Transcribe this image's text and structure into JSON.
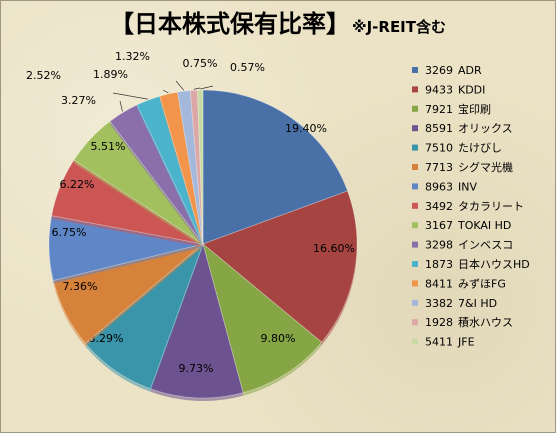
{
  "chart_data": {
    "type": "pie",
    "title": "【日本株式保有比率】",
    "subtitle": "※J-REIT含む",
    "slices": [
      {
        "code": "3269",
        "name": "ADR",
        "value": 19.4,
        "label": "19.40%",
        "color": "#4a70a8"
      },
      {
        "code": "9433",
        "name": "KDDI",
        "value": 16.6,
        "label": "16.60%",
        "color": "#a64442"
      },
      {
        "code": "7921",
        "name": "宝印刷",
        "value": 9.8,
        "label": "9.80%",
        "color": "#86a545"
      },
      {
        "code": "8591",
        "name": "オリックス",
        "value": 9.73,
        "label": "9.73%",
        "color": "#6d5290"
      },
      {
        "code": "7510",
        "name": "たけびし",
        "value": 8.29,
        "label": "8.29%",
        "color": "#3a94aa"
      },
      {
        "code": "7713",
        "name": "シグマ光機",
        "value": 7.36,
        "label": "7.36%",
        "color": "#d7823a"
      },
      {
        "code": "8963",
        "name": "INV",
        "value": 6.75,
        "label": "6.75%",
        "color": "#5f87c8"
      },
      {
        "code": "3492",
        "name": "タカラリート",
        "value": 6.22,
        "label": "6.22%",
        "color": "#cc5654"
      },
      {
        "code": "3167",
        "name": "TOKAI HD",
        "value": 5.51,
        "label": "5.51%",
        "color": "#a2c05e"
      },
      {
        "code": "3298",
        "name": "インベスコ",
        "value": 3.27,
        "label": "3.27%",
        "color": "#8a6fab"
      },
      {
        "code": "1873",
        "name": "日本ハウスHD",
        "value": 2.52,
        "label": "2.52%",
        "color": "#4bb3cb"
      },
      {
        "code": "8411",
        "name": "みずほFG",
        "value": 1.89,
        "label": "1.89%",
        "color": "#f2954a"
      },
      {
        "code": "3382",
        "name": "7&I HD",
        "value": 1.32,
        "label": "1.32%",
        "color": "#a4b8dc"
      },
      {
        "code": "1928",
        "name": "積水ハウス",
        "value": 0.75,
        "label": "0.75%",
        "color": "#dba8a7"
      },
      {
        "code": "5411",
        "name": "JFE",
        "value": 0.57,
        "label": "0.57%",
        "color": "#c9dba4"
      }
    ],
    "legend_position": "right"
  }
}
